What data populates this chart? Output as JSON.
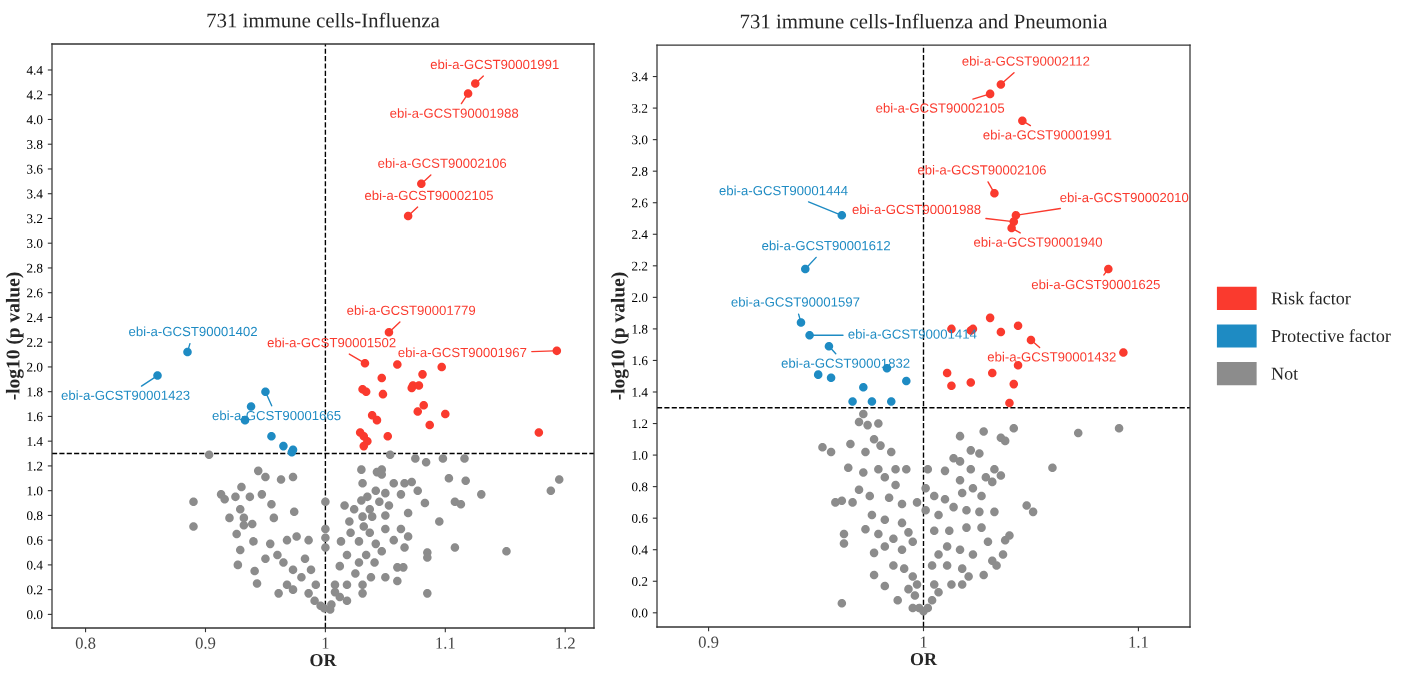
{
  "chart_data": [
    {
      "type": "scatter",
      "title": "731 immune cells-Influenza",
      "xlabel": "OR",
      "ylabel": "-log10 (p value)",
      "marker": "circle",
      "grid": false,
      "xlim": [
        0.772,
        1.224
      ],
      "ylim": [
        -0.11,
        4.61
      ],
      "xticks": [
        0.8,
        0.9,
        1,
        1.1,
        1.2
      ],
      "yticks": [
        {
          "value": 0,
          "label": "0.0"
        },
        0.2,
        0.4,
        0.6,
        0.8,
        {
          "value": 1,
          "label": "1.0"
        },
        1.2,
        1.4,
        1.6,
        1.8,
        {
          "value": 2,
          "label": "2.0"
        },
        2.2,
        2.4,
        2.6,
        2.8,
        {
          "value": 3,
          "label": "3.0"
        },
        3.2,
        3.4,
        3.6,
        3.8,
        {
          "value": 4,
          "label": "4.0"
        },
        4.2,
        4.4
      ],
      "ref_lines": [
        {
          "axis": "x",
          "value": 1,
          "line_style": "dashed"
        },
        {
          "axis": "y",
          "value": 1.3,
          "line_style": "dashed"
        }
      ],
      "series": [
        {
          "color": "#fa3a2e",
          "x": [
            1.125,
            1.119,
            1.08,
            1.069,
            1.053,
            1.033,
            1.193,
            1.06,
            1.097,
            1.047,
            1.081,
            1.073,
            1.072,
            1.078,
            1.031,
            1.034,
            1.048,
            1.082,
            1.077,
            1.1,
            1.039,
            1.043,
            1.087,
            1.178,
            1.029,
            1.032,
            1.035,
            1.032,
            1.052
          ],
          "values": [
            4.29,
            4.21,
            3.48,
            3.22,
            2.28,
            2.03,
            2.13,
            2.02,
            2.0,
            1.91,
            1.94,
            1.85,
            1.83,
            1.85,
            1.82,
            1.8,
            1.78,
            1.69,
            1.64,
            1.62,
            1.61,
            1.57,
            1.53,
            1.47,
            1.47,
            1.44,
            1.4,
            1.36,
            1.44
          ]
        },
        {
          "color": "#1e8bc3",
          "x": [
            0.885,
            0.86,
            0.95,
            0.938,
            0.933,
            0.955,
            0.965,
            0.973,
            0.972
          ],
          "values": [
            2.12,
            1.93,
            1.8,
            1.68,
            1.57,
            1.44,
            1.36,
            1.33,
            1.31
          ]
        },
        {
          "color": "#8c8c8c",
          "x": [
            0.903,
            0.89,
            0.89,
            1.054,
            1.075,
            1.084,
            1.098,
            1.116,
            1.103,
            1.117,
            1.13,
            1.108,
            1.113,
            1.095,
            1.085,
            1.085,
            1.108,
            1.151,
            1.085,
            1.188,
            1.195,
            1.083,
            1.077,
            0.944,
            0.95,
            0.963,
            0.973,
            0.93,
            0.913,
            0.916,
            0.925,
            0.937,
            0.947,
            0.955,
            0.929,
            0.92,
            0.932,
            0.932,
            0.926,
            0.939,
            0.957,
            0.974,
            0.94,
            0.929,
            0.927,
            0.941,
            0.943,
            0.95,
            0.96,
            0.968,
            0.976,
            0.986,
            0.983,
            0.954,
            0.965,
            0.973,
            0.98,
            0.968,
            0.961,
            0.986,
            0.991,
            0.996,
            0.992,
            0.973,
            0.988,
            0.999,
            1.0,
            1.0,
            1.0,
            1.0,
            1.03,
            1.043,
            1.047,
            1.047,
            1.031,
            1.057,
            1.066,
            1.072,
            1.042,
            1.05,
            1.063,
            1.035,
            1.03,
            1.045,
            1.053,
            1.016,
            1.024,
            1.037,
            1.069,
            1.031,
            1.039,
            1.05,
            1.02,
            1.032,
            1.05,
            1.063,
            1.069,
            1.021,
            1.037,
            1.013,
            1.028,
            1.042,
            1.057,
            1.066,
            1.018,
            1.034,
            1.047,
            1.06,
            1.065,
            1.06,
            1.041,
            1.028,
            1.012,
            1.025,
            1.038,
            1.05,
            1.008,
            1.018,
            1.031,
            1.012,
            1.018,
            1.005,
            1.008,
            1.031,
            1.004
          ],
          "values": [
            1.29,
            0.91,
            0.71,
            1.29,
            1.26,
            1.23,
            1.26,
            1.26,
            1.1,
            1.08,
            0.97,
            0.91,
            0.89,
            0.75,
            0.5,
            0.46,
            0.54,
            0.51,
            0.17,
            1.0,
            1.09,
            0.9,
            1.0,
            1.16,
            1.11,
            1.09,
            1.11,
            1.03,
            0.97,
            0.93,
            0.95,
            0.95,
            0.97,
            0.89,
            0.85,
            0.78,
            0.78,
            0.72,
            0.65,
            0.73,
            0.78,
            0.83,
            0.59,
            0.52,
            0.4,
            0.35,
            0.25,
            0.45,
            0.48,
            0.6,
            0.63,
            0.6,
            0.45,
            0.57,
            0.42,
            0.36,
            0.3,
            0.24,
            0.17,
            0.17,
            0.11,
            0.07,
            0.24,
            0.2,
            0.36,
            0.05,
            0.91,
            0.69,
            0.62,
            0.54,
            1.17,
            1.15,
            1.17,
            1.13,
            1.06,
            1.06,
            1.06,
            1.07,
            1.0,
            0.98,
            0.97,
            0.95,
            0.92,
            0.91,
            0.88,
            0.88,
            0.85,
            0.85,
            0.82,
            0.79,
            0.79,
            0.8,
            0.75,
            0.71,
            0.69,
            0.69,
            0.63,
            0.66,
            0.66,
            0.59,
            0.59,
            0.57,
            0.6,
            0.54,
            0.48,
            0.48,
            0.51,
            0.38,
            0.38,
            0.27,
            0.42,
            0.42,
            0.39,
            0.33,
            0.3,
            0.3,
            0.24,
            0.24,
            0.17,
            0.14,
            0.11,
            0.08,
            0.18,
            0.24,
            0.04
          ]
        }
      ],
      "annotations": [
        {
          "text": "ebi-a-GCST90001991",
          "x": 1.125,
          "y": 4.29
        },
        {
          "text": "ebi-a-GCST90001988",
          "x": 1.119,
          "y": 4.21
        },
        {
          "text": "ebi-a-GCST90002106",
          "x": 1.08,
          "y": 3.48
        },
        {
          "text": "ebi-a-GCST90002105",
          "x": 1.069,
          "y": 3.22
        },
        {
          "text": "ebi-a-GCST90001779",
          "x": 1.053,
          "y": 2.28
        },
        {
          "text": "ebi-a-GCST90001502",
          "x": 1.033,
          "y": 2.03
        },
        {
          "text": "ebi-a-GCST90001967",
          "x": 1.193,
          "y": 2.13
        },
        {
          "text": "ebi-a-GCST90001402",
          "x": 0.885,
          "y": 2.12
        },
        {
          "text": "ebi-a-GCST90001423",
          "x": 0.86,
          "y": 1.93
        },
        {
          "text": "ebi-a-GCST90001665",
          "x": 0.95,
          "y": 1.8
        }
      ]
    },
    {
      "type": "scatter",
      "title": "731 immune cells-Influenza and Pneumonia",
      "xlabel": "OR",
      "ylabel": "-log10 (p value)",
      "marker": "circle",
      "grid": false,
      "legend": "right",
      "xlim": [
        0.876,
        1.124
      ],
      "ylim": [
        -0.09,
        3.6
      ],
      "xticks": [
        0.9,
        1,
        1.1
      ],
      "yticks": [
        {
          "value": 0,
          "label": "0.0"
        },
        0.2,
        0.4,
        0.6,
        0.8,
        {
          "value": 1,
          "label": "1.0"
        },
        1.2,
        1.4,
        1.6,
        1.8,
        {
          "value": 2,
          "label": "2.0"
        },
        2.2,
        2.4,
        2.6,
        2.8,
        {
          "value": 3,
          "label": "3.0"
        },
        3.2,
        3.4
      ],
      "ref_lines": [
        {
          "axis": "x",
          "value": 1,
          "line_style": "dashed"
        },
        {
          "axis": "y",
          "value": 1.3,
          "line_style": "dashed"
        }
      ],
      "series": [
        {
          "name": "Risk factor",
          "color": "#fa3a2e",
          "x": [
            1.036,
            1.031,
            1.046,
            1.033,
            1.043,
            1.042,
            1.041,
            1.086,
            1.05,
            1.013,
            1.022,
            1.023,
            1.031,
            1.044,
            1.036,
            1.093,
            1.044,
            1.011,
            1.032,
            1.013,
            1.022,
            1.042,
            1.04
          ],
          "values": [
            3.35,
            3.29,
            3.12,
            2.66,
            2.52,
            2.48,
            2.44,
            2.18,
            1.73,
            1.8,
            1.79,
            1.8,
            1.87,
            1.82,
            1.78,
            1.65,
            1.57,
            1.52,
            1.52,
            1.44,
            1.46,
            1.45,
            1.33
          ]
        },
        {
          "name": "Protective factor",
          "color": "#1e8bc3",
          "x": [
            0.962,
            0.945,
            0.943,
            0.947,
            0.956,
            0.951,
            0.957,
            0.983,
            0.992,
            0.972,
            0.967,
            0.976,
            0.985
          ],
          "values": [
            2.52,
            2.18,
            1.84,
            1.76,
            1.69,
            1.51,
            1.49,
            1.55,
            1.47,
            1.43,
            1.34,
            1.34,
            1.34
          ]
        },
        {
          "name": "Not",
          "color": "#8c8c8c",
          "x": [
            1.091,
            1.072,
            1.06,
            1.048,
            1.051,
            1.042,
            1.036,
            1.038,
            1.028,
            1.017,
            1.04,
            1.038,
            1.028,
            1.032,
            0.962,
            0.953,
            0.957,
            0.963,
            0.963,
            0.959,
            0.962,
            0.972,
            0.97,
            0.974,
            0.979,
            0.977,
            0.98,
            0.966,
            0.973,
            0.985,
            0.965,
            0.972,
            0.979,
            0.987,
            0.992,
            0.982,
            0.987,
            0.97,
            0.975,
            0.967,
            0.984,
            0.99,
            0.997,
            0.976,
            0.982,
            0.99,
            0.973,
            0.979,
            0.986,
            0.993,
            0.982,
            0.99,
            0.995,
            0.977,
            0.977,
            0.982,
            0.988,
            0.986,
            0.991,
            0.995,
            0.993,
            0.996,
            0.995,
            0.998,
            0.997,
            1.0,
            1.002,
            1.001,
            1.001,
            1.005,
            1.01,
            1.014,
            1.017,
            1.022,
            1.026,
            1.022,
            1.029,
            1.033,
            1.036,
            1.017,
            1.032,
            1.01,
            1.018,
            1.023,
            1.027,
            1.007,
            1.014,
            1.02,
            1.026,
            1.033,
            1.005,
            1.012,
            1.02,
            1.027,
            1.03,
            1.011,
            1.017,
            1.023,
            1.007,
            1.004,
            1.011,
            1.018,
            1.021,
            1.013,
            1.018,
            1.005,
            1.004,
            1.007,
            1.002,
            1.037,
            1.034
          ],
          "values": [
            1.17,
            1.14,
            0.92,
            0.68,
            0.64,
            1.17,
            1.11,
            1.09,
            1.15,
            1.12,
            0.49,
            0.46,
            0.24,
            0.33,
            0.06,
            1.05,
            1.02,
            0.5,
            0.44,
            0.7,
            0.71,
            1.26,
            1.21,
            1.19,
            1.2,
            1.1,
            1.06,
            1.07,
            1.02,
            1.02,
            0.92,
            0.89,
            0.91,
            0.91,
            0.91,
            0.86,
            0.81,
            0.78,
            0.74,
            0.7,
            0.73,
            0.69,
            0.7,
            0.62,
            0.59,
            0.57,
            0.53,
            0.5,
            0.47,
            0.51,
            0.42,
            0.4,
            0.45,
            0.38,
            0.24,
            0.17,
            0.08,
            0.3,
            0.28,
            0.23,
            0.15,
            0.11,
            0.03,
            0.03,
            0.18,
            0.01,
            0.91,
            0.79,
            0.65,
            0.74,
            0.9,
            0.98,
            0.96,
            1.03,
            1.01,
            0.91,
            0.86,
            0.91,
            0.87,
            0.84,
            0.83,
            0.72,
            0.76,
            0.79,
            0.74,
            0.62,
            0.67,
            0.65,
            0.64,
            0.64,
            0.52,
            0.52,
            0.54,
            0.54,
            0.45,
            0.42,
            0.4,
            0.37,
            0.37,
            0.3,
            0.3,
            0.28,
            0.23,
            0.18,
            0.18,
            0.18,
            0.08,
            0.13,
            0.03,
            0.37,
            0.3
          ]
        }
      ],
      "annotations": [
        {
          "text": "ebi-a-GCST90002112",
          "x": 1.036,
          "y": 3.35
        },
        {
          "text": "ebi-a-GCST90002105",
          "x": 1.031,
          "y": 3.29
        },
        {
          "text": "ebi-a-GCST90001991",
          "x": 1.046,
          "y": 3.12
        },
        {
          "text": "ebi-a-GCST90002106",
          "x": 1.033,
          "y": 2.66
        },
        {
          "text": "ebi-a-GCST90002010",
          "x": 1.043,
          "y": 2.52
        },
        {
          "text": "ebi-a-GCST90001988",
          "x": 1.042,
          "y": 2.48
        },
        {
          "text": "ebi-a-GCST90001940",
          "x": 1.041,
          "y": 2.44
        },
        {
          "text": "ebi-a-GCST90001625",
          "x": 1.086,
          "y": 2.18
        },
        {
          "text": "ebi-a-GCST90001444",
          "x": 0.962,
          "y": 2.52
        },
        {
          "text": "ebi-a-GCST90001612",
          "x": 0.945,
          "y": 2.18
        },
        {
          "text": "ebi-a-GCST90001597",
          "x": 0.943,
          "y": 1.84
        },
        {
          "text": "ebi-a-GCST90001414",
          "x": 0.947,
          "y": 1.76
        },
        {
          "text": "ebi-a-GCST90001832",
          "x": 0.956,
          "y": 1.69
        },
        {
          "text": "ebi-a-GCST90001432",
          "x": 1.05,
          "y": 1.73
        }
      ]
    }
  ]
}
